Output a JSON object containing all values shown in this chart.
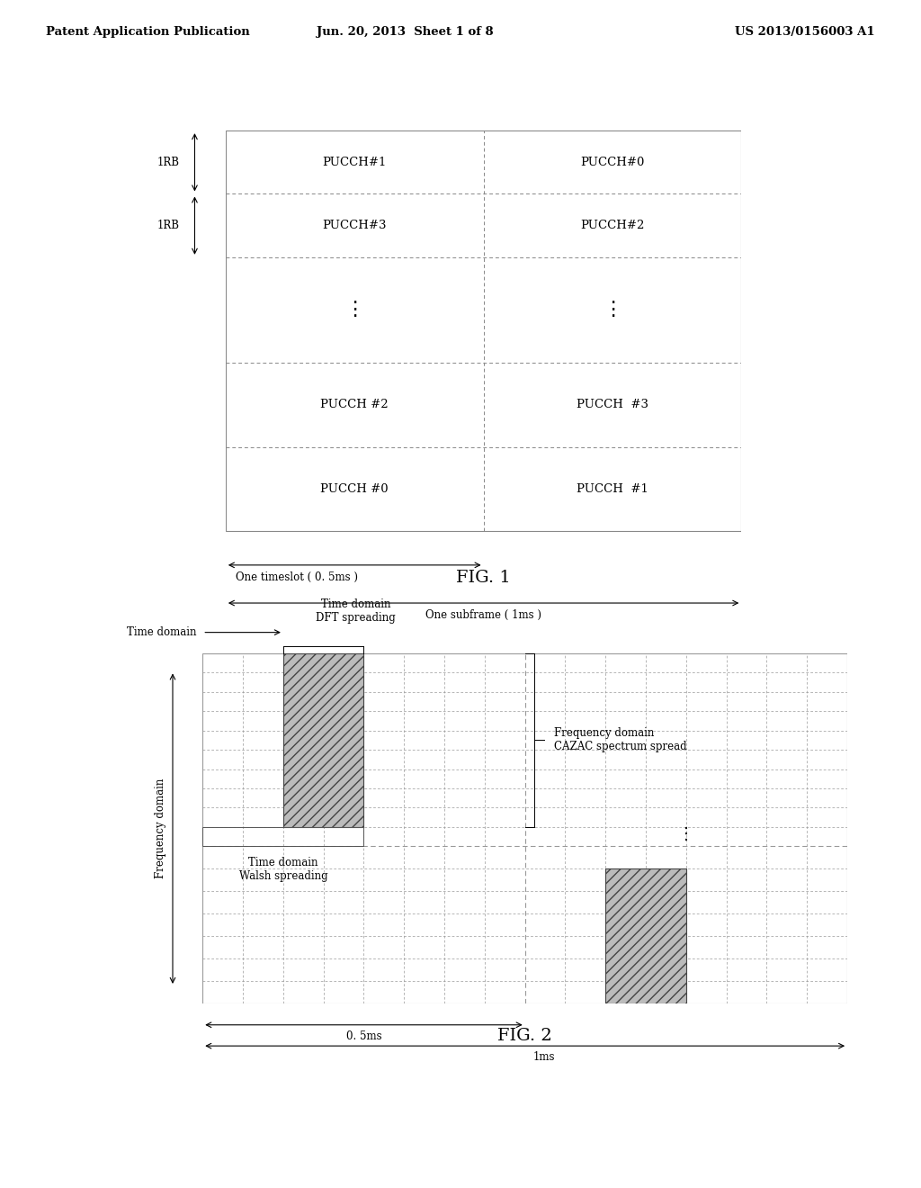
{
  "header_left": "Patent Application Publication",
  "header_center": "Jun. 20, 2013  Sheet 1 of 8",
  "header_right": "US 2013/0156003 A1",
  "fig1_label": "FIG. 1",
  "fig2_label": "FIG. 2",
  "background_color": "#ffffff",
  "text_color": "#000000",
  "grid_color": "#888888",
  "fig1": {
    "row4_left": "PUCCH#1",
    "row4_right": "PUCCH#0",
    "row4_label": "1RB",
    "row3_left": "PUCCH#3",
    "row3_right": "PUCCH#2",
    "row3_label": "1RB",
    "row1_left": "PUCCH #2",
    "row1_right": "PUCCH  #3",
    "row0_left": "PUCCH #0",
    "row0_right": "PUCCH  #1",
    "bottom_label1": "One timeslot ( 0. 5ms )",
    "bottom_label2": "One subframe ( 1ms )"
  },
  "fig2": {
    "freq_label": "Frequency domain",
    "time_domain_label": "Time domain",
    "time_domain_dft_label": "Time domain\nDFT spreading",
    "time_domain_walsh_label": "Time domain\nWalsh spreading",
    "freq_domain_cazac_label": "Frequency domain\nCAZAC spectrum spread",
    "bottom_label1": "0. 5ms",
    "bottom_label2": "1ms"
  }
}
